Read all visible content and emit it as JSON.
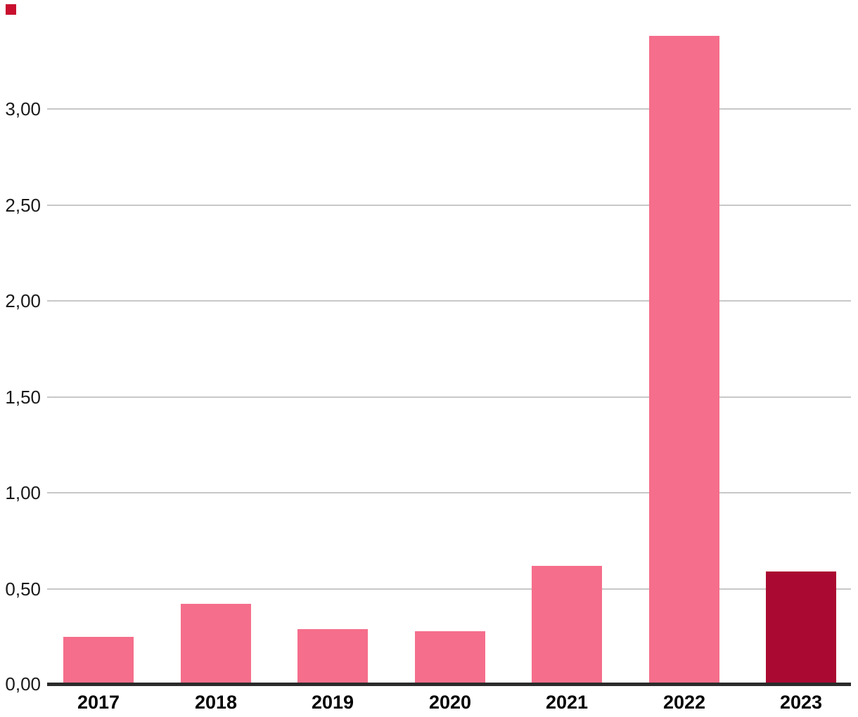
{
  "corner_marker": {
    "color": "#C8102E"
  },
  "chart_data": {
    "type": "bar",
    "title": "",
    "xlabel": "",
    "ylabel": "",
    "categories": [
      "2017",
      "2018",
      "2019",
      "2020",
      "2021",
      "2022",
      "2023"
    ],
    "values": [
      0.25,
      0.42,
      0.29,
      0.28,
      0.62,
      3.38,
      0.59
    ],
    "bar_colors": [
      "#F56E8B",
      "#F56E8B",
      "#F56E8B",
      "#F56E8B",
      "#F56E8B",
      "#F56E8B",
      "#AA0A31"
    ],
    "y_ticks": [
      {
        "label": "0,00",
        "value": 0
      },
      {
        "label": "0,50",
        "value": 0.5
      },
      {
        "label": "1,00",
        "value": 1
      },
      {
        "label": "1,50",
        "value": 1.5
      },
      {
        "label": "2,00",
        "value": 2
      },
      {
        "label": "2,50",
        "value": 2.5
      },
      {
        "label": "3,00",
        "value": 3
      }
    ],
    "ylim": [
      0,
      3.4
    ],
    "grid": true,
    "legend": "none",
    "decimal_separator": ",",
    "colors": {
      "bar_default": "#F56E8B",
      "bar_highlight": "#AA0A31",
      "gridline": "#C8C8C8",
      "axis": "#2B2B2B",
      "y_tick_text": "#1A1A1A",
      "x_tick_text": "#000000",
      "background": "#FFFFFF"
    }
  }
}
